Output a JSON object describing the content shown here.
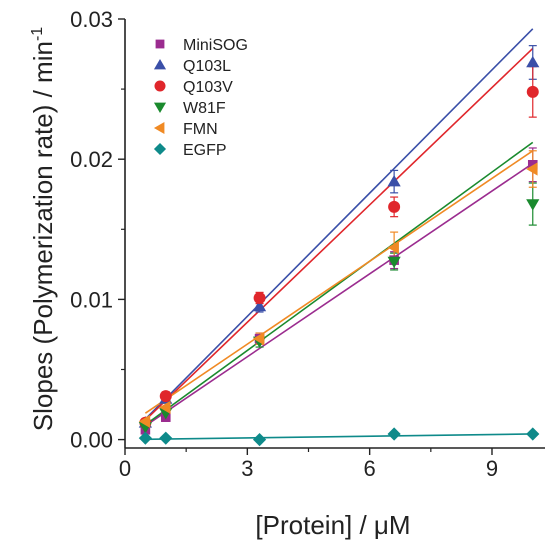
{
  "chart_data": {
    "type": "scatter",
    "xlabel": "[Protein] / μM",
    "ylabel": "Slopes (Polymerization rate) / min",
    "ylabel_superscript": "-1",
    "xlim": [
      0,
      10.3
    ],
    "ylim": [
      -0.0006,
      0.03
    ],
    "x_ticks": [
      0,
      3,
      6,
      9
    ],
    "x_tick_labels": [
      "0",
      "3",
      "6",
      "9"
    ],
    "y_ticks": [
      0.0,
      0.01,
      0.02,
      0.03
    ],
    "y_tick_labels": [
      "0.00",
      "0.01",
      "0.02",
      "0.03"
    ],
    "grid": false,
    "legend_position": "top-left",
    "x": [
      0.5,
      1.0,
      3.3,
      6.6,
      10.0
    ],
    "series": [
      {
        "name": "MiniSOG",
        "marker": "square",
        "color": "#9b2c8f",
        "values": [
          0.0007,
          0.0016,
          0.0072,
          0.0128,
          0.0196
        ],
        "errors": [
          0.0002,
          0.0003,
          0.0004,
          0.0006,
          0.0012
        ],
        "fit": [
          0.0,
          0.00197
        ]
      },
      {
        "name": "Q103L",
        "marker": "triangle-up",
        "color": "#3a4fa8",
        "values": [
          0.0012,
          0.0029,
          0.0095,
          0.0184,
          0.0269
        ],
        "errors": [
          0.0002,
          0.0003,
          0.0004,
          0.0008,
          0.0012
        ],
        "fit": [
          0.0,
          0.00293
        ]
      },
      {
        "name": "Q103V",
        "marker": "circle",
        "color": "#e0262b",
        "values": [
          0.0012,
          0.0031,
          0.0101,
          0.0166,
          0.0248
        ],
        "errors": [
          0.0002,
          0.0003,
          0.0004,
          0.0007,
          0.0018
        ],
        "fit": [
          0.0,
          0.00279
        ]
      },
      {
        "name": "W81F",
        "marker": "triangle-down",
        "color": "#1a8a2e",
        "values": [
          0.0009,
          0.0019,
          0.007,
          0.0127,
          0.0168
        ],
        "errors": [
          0.0002,
          0.0003,
          0.0004,
          0.0006,
          0.0015
        ],
        "fit": [
          0.0,
          0.00212
        ]
      },
      {
        "name": "FMN",
        "marker": "triangle-left",
        "color": "#f08a24",
        "values": [
          0.0013,
          0.0023,
          0.0072,
          0.0137,
          0.0193
        ],
        "errors": [
          0.0002,
          0.0003,
          0.0004,
          0.0011,
          0.0013
        ],
        "fit": [
          0.0009,
          0.00197
        ]
      },
      {
        "name": "EGFP",
        "marker": "diamond",
        "color": "#0e8a8a",
        "values": [
          0.0001,
          0.0001,
          0.0,
          0.0004,
          0.0004
        ],
        "errors": [
          0.0,
          0.0,
          0.0,
          0.0,
          0.0
        ],
        "fit": [
          0.0,
          4e-05
        ]
      }
    ]
  }
}
